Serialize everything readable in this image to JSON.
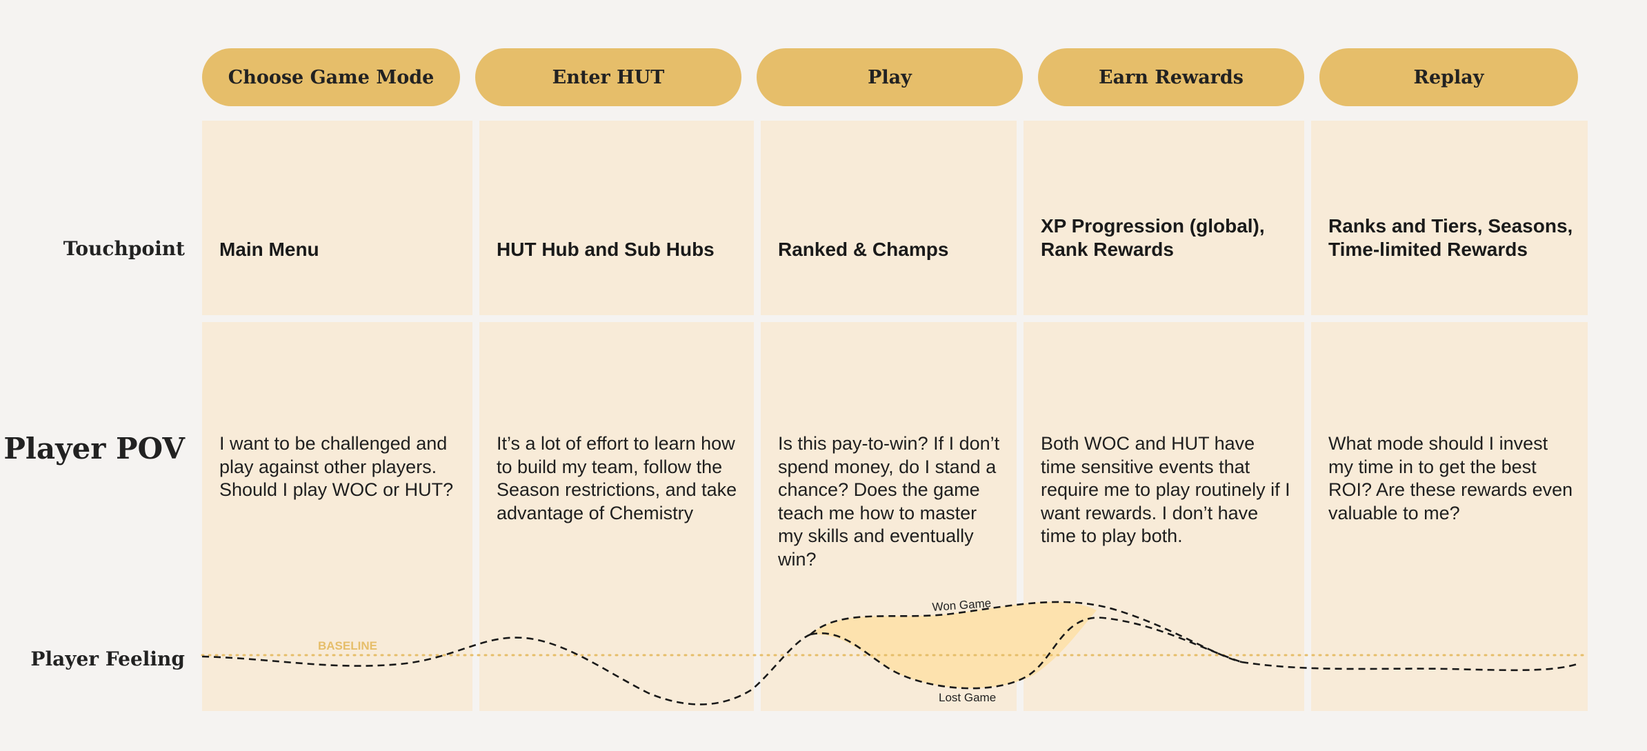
{
  "stages": [
    {
      "label": "Choose Game Mode",
      "touchpoint": "Main Menu",
      "pov": "I want to be challenged and play against other players. Should I play WOC or HUT?"
    },
    {
      "label": "Enter HUT",
      "touchpoint": "HUT Hub and Sub Hubs",
      "pov": "It’s a lot of effort to learn how to build my team, follow the Season restrictions, and take advantage of Chemistry"
    },
    {
      "label": "Play",
      "touchpoint": "Ranked & Champs",
      "pov": "Is this pay-to-win? If I don’t spend money, do I stand a chance? Does the game teach me how to master my skills and eventually win?"
    },
    {
      "label": "Earn Rewards",
      "touchpoint": "XP Progression (global), Rank Rewards",
      "pov": "Both WOC and HUT have time sensitive events that require me to play routinely if I want rewards. I don’t have time to play both."
    },
    {
      "label": "Replay",
      "touchpoint": "Ranks and Tiers, Seasons, Time-limited Rewards",
      "pov": "What mode should I invest my time in to get the best ROI? Are these rewards even valuable to me?"
    }
  ],
  "rows": {
    "touchpoint": "Touchpoint",
    "pov": "Player POV",
    "feeling": "Player Feeling"
  },
  "feeling": {
    "baseline_label": "BASELINE",
    "won_label": "Won Game",
    "lost_label": "Lost Game"
  },
  "colors": {
    "pill": "#e6be6a",
    "cell": "#f8ebd8",
    "background": "#f5f3f1",
    "highlight": "#fde2ae"
  }
}
